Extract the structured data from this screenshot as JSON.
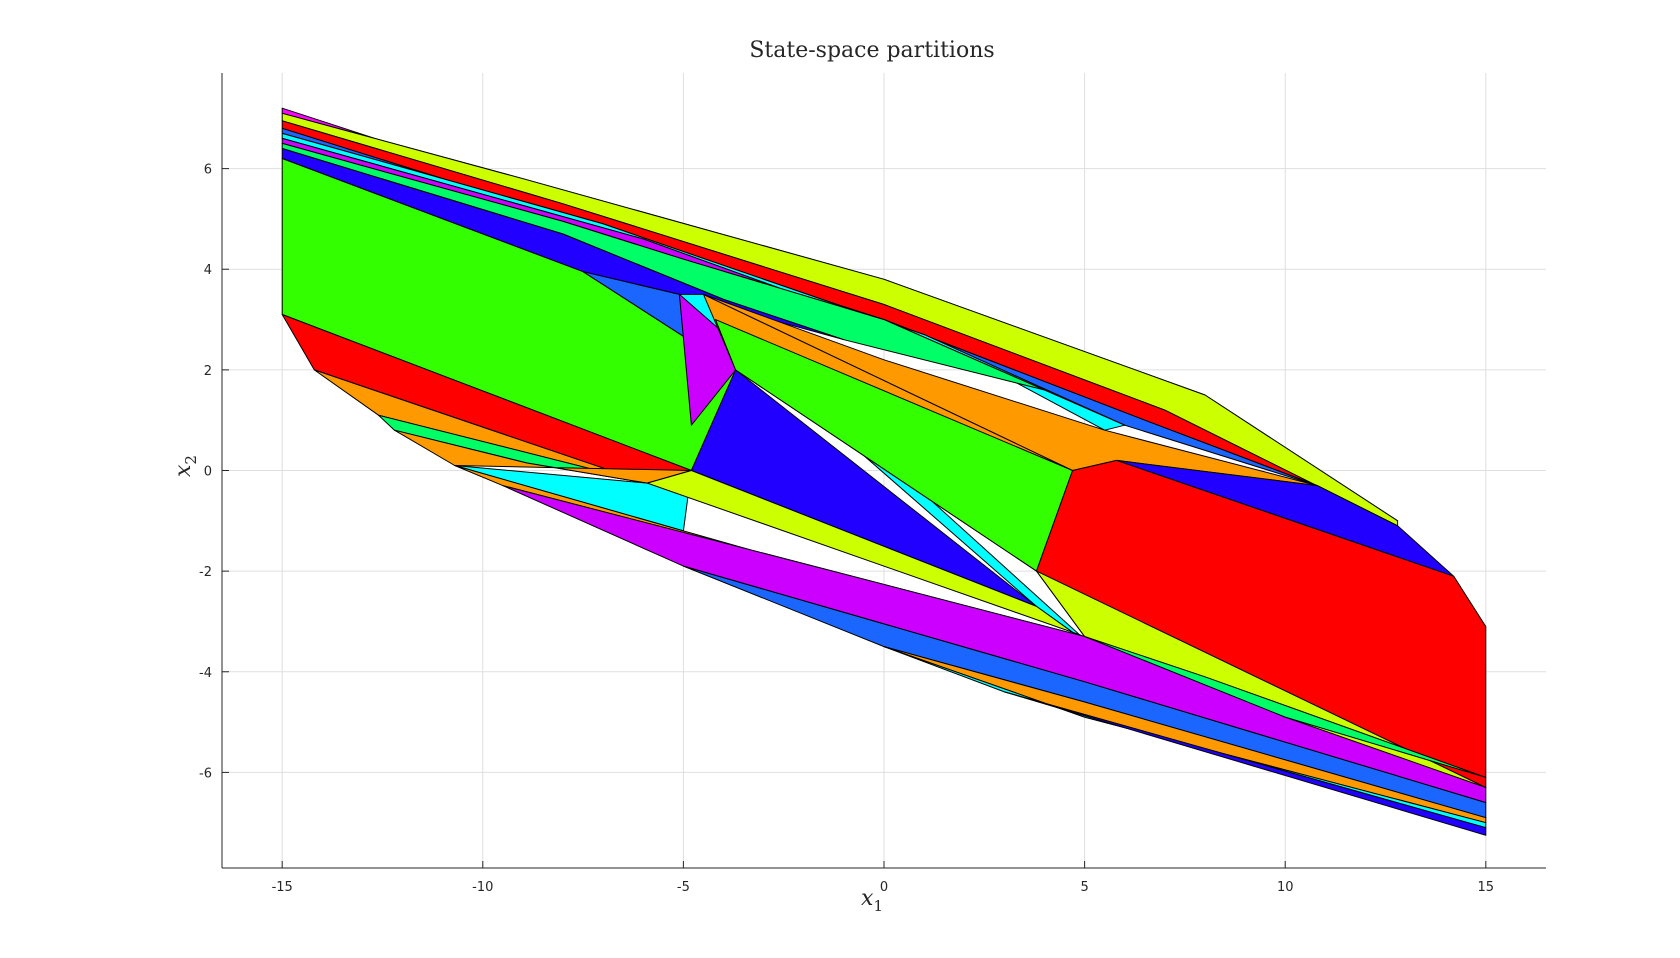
{
  "chart_data": {
    "type": "polygon-partition",
    "title": "State-space partitions",
    "xlabel": "x",
    "xlabel_sub": "1",
    "ylabel": "x",
    "ylabel_sub": "2",
    "xlim": [
      -16.5,
      16.5
    ],
    "ylim": [
      -7.9,
      7.9
    ],
    "grid": true,
    "xticks": [
      -15,
      -10,
      -5,
      0,
      5,
      10,
      15
    ],
    "yticks": [
      -6,
      -4,
      -2,
      0,
      2,
      4,
      6
    ],
    "xtick_labels": [
      "-15",
      "-10",
      "-5",
      "0",
      "5",
      "10",
      "15"
    ],
    "ytick_labels": [
      "-6",
      "-4",
      "-2",
      "0",
      "2",
      "4",
      "6"
    ],
    "regions": [
      {
        "color": "#ff00ff",
        "points": [
          [
            -15,
            7.2
          ],
          [
            -15,
            7.1
          ],
          [
            -9,
            5.8
          ],
          [
            0,
            3.8
          ],
          [
            8,
            1.5
          ],
          [
            12.8,
            -1.0
          ],
          [
            12.2,
            -0.7
          ],
          [
            6.5,
            1.6
          ],
          [
            -2,
            3.8
          ],
          [
            -10,
            5.9
          ]
        ]
      },
      {
        "color": "#ccff00",
        "points": [
          [
            -15,
            7.1
          ],
          [
            -15,
            6.95
          ],
          [
            -8,
            5.3
          ],
          [
            0,
            3.3
          ],
          [
            7,
            1.2
          ],
          [
            12.8,
            -1.1
          ],
          [
            12.8,
            -1.0
          ],
          [
            8,
            1.5
          ],
          [
            0,
            3.8
          ],
          [
            -9,
            5.8
          ]
        ]
      },
      {
        "color": "#ff0000",
        "points": [
          [
            -15,
            6.95
          ],
          [
            -15,
            6.8
          ],
          [
            -8,
            5.05
          ],
          [
            0,
            3.0
          ],
          [
            6.5,
            1.0
          ],
          [
            10.8,
            -0.3
          ],
          [
            12.8,
            -1.1
          ],
          [
            7,
            1.2
          ],
          [
            0,
            3.3
          ],
          [
            -8,
            5.3
          ]
        ]
      },
      {
        "color": "#1a66ff",
        "points": [
          [
            -15,
            6.8
          ],
          [
            -15,
            6.7
          ],
          [
            -7,
            4.9
          ],
          [
            1,
            2.7
          ],
          [
            6,
            0.9
          ],
          [
            10.8,
            -0.3
          ],
          [
            6.5,
            1.0
          ],
          [
            0,
            3.0
          ],
          [
            -8,
            5.05
          ]
        ]
      },
      {
        "color": "#00ffff",
        "points": [
          [
            -15,
            6.7
          ],
          [
            -15,
            6.6
          ],
          [
            -6,
            4.6
          ],
          [
            2,
            2.3
          ],
          [
            5.5,
            0.8
          ],
          [
            6,
            0.9
          ],
          [
            1,
            2.7
          ],
          [
            -7,
            4.9
          ]
        ]
      },
      {
        "color": "#cc00ff",
        "points": [
          [
            -15,
            6.6
          ],
          [
            -15,
            6.5
          ],
          [
            -8,
            4.95
          ],
          [
            -5,
            4.2
          ],
          [
            0,
            3.0
          ],
          [
            4,
            1.6
          ],
          [
            6,
            0.9
          ],
          [
            2,
            2.3
          ],
          [
            -6,
            4.6
          ]
        ]
      },
      {
        "color": "#00ff66",
        "points": [
          [
            -15,
            6.5
          ],
          [
            -15,
            6.4
          ],
          [
            -8,
            4.7
          ],
          [
            -4,
            3.4
          ],
          [
            -1,
            2.6
          ],
          [
            4,
            1.6
          ],
          [
            0,
            3.0
          ],
          [
            -5,
            4.2
          ],
          [
            -8,
            4.95
          ]
        ]
      },
      {
        "color": "#2200ff",
        "points": [
          [
            -15,
            6.4
          ],
          [
            -15,
            6.2
          ],
          [
            -7.5,
            3.95
          ],
          [
            -5.1,
            3.5
          ],
          [
            -1,
            2.6
          ],
          [
            -4,
            3.4
          ],
          [
            -8,
            4.7
          ]
        ]
      },
      {
        "color": "#33ff00",
        "points": [
          [
            -15,
            6.2
          ],
          [
            -15,
            3.1
          ],
          [
            -4.8,
            0
          ],
          [
            -3.7,
            2.0
          ],
          [
            -7.5,
            3.95
          ]
        ]
      },
      {
        "color": "#1a66ff",
        "points": [
          [
            -7.5,
            3.95
          ],
          [
            -3.7,
            2.0
          ],
          [
            -5.1,
            3.5
          ]
        ]
      },
      {
        "color": "#cc00ff",
        "points": [
          [
            -5.1,
            3.5
          ],
          [
            -4.2,
            3.0
          ],
          [
            -3.7,
            2.0
          ],
          [
            -4.8,
            0.9
          ]
        ]
      },
      {
        "color": "#00ffff",
        "points": [
          [
            -5.1,
            3.5
          ],
          [
            -4.5,
            3.5
          ],
          [
            5.2,
            -3.5
          ],
          [
            3.8,
            -2.7
          ]
        ]
      },
      {
        "color": "#ff9900",
        "points": [
          [
            -4.5,
            3.5
          ],
          [
            4.7,
            0.0
          ],
          [
            3.8,
            -2.0
          ],
          [
            -3.7,
            2.0
          ]
        ]
      },
      {
        "color": "#2200ff",
        "points": [
          [
            -3.7,
            2.0
          ],
          [
            3.8,
            -2.7
          ],
          [
            -4.8,
            0
          ]
        ]
      },
      {
        "color": "#33ff00",
        "points": [
          [
            -4.2,
            3.0
          ],
          [
            4.7,
            0.0
          ],
          [
            3.8,
            -2.0
          ],
          [
            -3.7,
            2.0
          ]
        ]
      },
      {
        "color": "#ff9900",
        "points": [
          [
            -4.5,
            3.5
          ],
          [
            0,
            2.2
          ],
          [
            5.5,
            0.8
          ],
          [
            10.8,
            -0.3
          ],
          [
            5.8,
            0.2
          ],
          [
            4.7,
            0.0
          ]
        ]
      },
      {
        "color": "#ff0000",
        "points": [
          [
            4.7,
            0.0
          ],
          [
            5.8,
            0.2
          ],
          [
            14.2,
            -2.1
          ],
          [
            15,
            -3.1
          ],
          [
            15,
            -6.3
          ],
          [
            5,
            -3.3
          ],
          [
            3.8,
            -2.0
          ]
        ]
      },
      {
        "color": "#2200ff",
        "points": [
          [
            5.8,
            0.2
          ],
          [
            10.8,
            -0.3
          ],
          [
            12.8,
            -1.1
          ],
          [
            14.2,
            -2.1
          ]
        ]
      },
      {
        "color": "#ff0000",
        "points": [
          [
            -15,
            3.1
          ],
          [
            -14.2,
            2.0
          ],
          [
            -5.9,
            -0.25
          ],
          [
            -4.8,
            0
          ]
        ]
      },
      {
        "color": "#ff9900",
        "points": [
          [
            -14.2,
            2.0
          ],
          [
            -12.6,
            1.1
          ],
          [
            -5.9,
            -0.25
          ]
        ]
      },
      {
        "color": "#00ff66",
        "points": [
          [
            -12.6,
            1.1
          ],
          [
            -12.2,
            0.8
          ],
          [
            -8.9,
            0.15
          ],
          [
            -5.9,
            -0.25
          ]
        ]
      },
      {
        "color": "#ff9900",
        "points": [
          [
            -12.2,
            0.8
          ],
          [
            -10.7,
            0.1
          ],
          [
            -4.8,
            0
          ],
          [
            -5.9,
            -0.25
          ],
          [
            -8.9,
            0.15
          ]
        ]
      },
      {
        "color": "#00ffff",
        "points": [
          [
            -10.7,
            0.1
          ],
          [
            -5,
            -1.2
          ],
          [
            -4.8,
            0
          ],
          [
            -5.9,
            -0.25
          ]
        ]
      },
      {
        "color": "#ccff00",
        "points": [
          [
            -5.9,
            -0.25
          ],
          [
            -4.8,
            0
          ],
          [
            3.8,
            -2.7
          ],
          [
            5.2,
            -3.5
          ],
          [
            5,
            -3.3
          ]
        ]
      },
      {
        "color": "#ff9900",
        "points": [
          [
            -10.7,
            0.1
          ],
          [
            -9.5,
            -0.3
          ],
          [
            5,
            -3.3
          ],
          [
            5.2,
            -3.5
          ],
          [
            -5,
            -1.2
          ]
        ]
      },
      {
        "color": "#cc00ff",
        "points": [
          [
            -9.5,
            -0.3
          ],
          [
            -5,
            -1.9
          ],
          [
            5,
            -4.2
          ],
          [
            15,
            -6.6
          ],
          [
            15,
            -6.3
          ],
          [
            5,
            -3.3
          ]
        ]
      },
      {
        "color": "#1a66ff",
        "points": [
          [
            -5,
            -1.9
          ],
          [
            0,
            -3.5
          ],
          [
            5,
            -4.6
          ],
          [
            15,
            -6.9
          ],
          [
            15,
            -6.6
          ],
          [
            5,
            -4.2
          ]
        ]
      },
      {
        "color": "#ff9900",
        "points": [
          [
            0,
            -3.5
          ],
          [
            5,
            -4.9
          ],
          [
            15,
            -7.0
          ],
          [
            15,
            -6.9
          ],
          [
            5,
            -4.6
          ]
        ]
      },
      {
        "color": "#00ffff",
        "points": [
          [
            0,
            -3.5
          ],
          [
            3,
            -4.4
          ],
          [
            15,
            -7.1
          ],
          [
            15,
            -7.0
          ],
          [
            5,
            -4.9
          ]
        ]
      },
      {
        "color": "#2200ff",
        "points": [
          [
            3,
            -4.4
          ],
          [
            15,
            -7.25
          ],
          [
            15,
            -7.1
          ]
        ]
      },
      {
        "color": "#ccff00",
        "points": [
          [
            3.8,
            -2.0
          ],
          [
            5,
            -3.3
          ],
          [
            10,
            -4.9
          ],
          [
            15,
            -6.3
          ]
        ]
      },
      {
        "color": "#00ff66",
        "points": [
          [
            5,
            -3.3
          ],
          [
            8,
            -4.1
          ],
          [
            15,
            -6.1
          ],
          [
            10,
            -4.9
          ]
        ]
      }
    ]
  }
}
